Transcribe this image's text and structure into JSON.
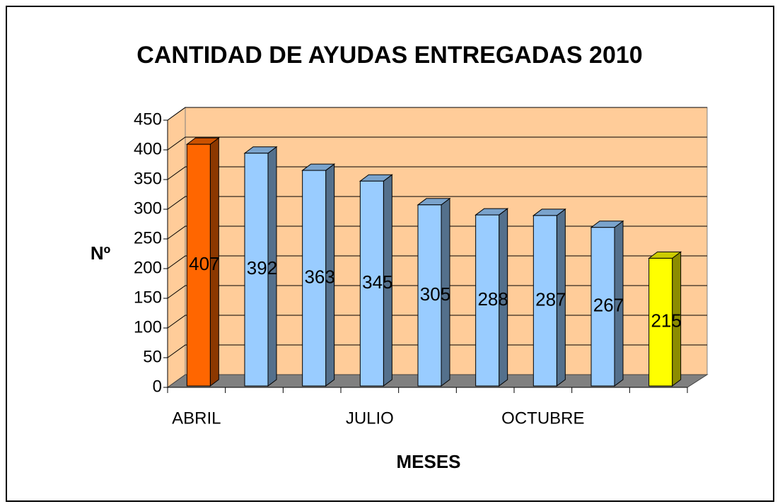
{
  "chart_data": {
    "type": "bar3d",
    "title": "CANTIDAD DE AYUDAS ENTREGADAS 2010",
    "x_label": "MESES",
    "y_label": "Nº",
    "categories": [
      "ABRIL",
      null,
      null,
      "JULIO",
      null,
      null,
      "OCTUBRE",
      null,
      null
    ],
    "values": [
      407,
      392,
      363,
      345,
      305,
      288,
      287,
      267,
      215
    ],
    "colors": [
      "#ff6600",
      "#99ccff",
      "#99ccff",
      "#99ccff",
      "#99ccff",
      "#99ccff",
      "#99ccff",
      "#99ccff",
      "#ffff00"
    ],
    "ylim": [
      0,
      450
    ],
    "yticks": [
      0,
      50,
      100,
      150,
      200,
      250,
      300,
      350,
      400,
      450
    ],
    "grid": true
  }
}
